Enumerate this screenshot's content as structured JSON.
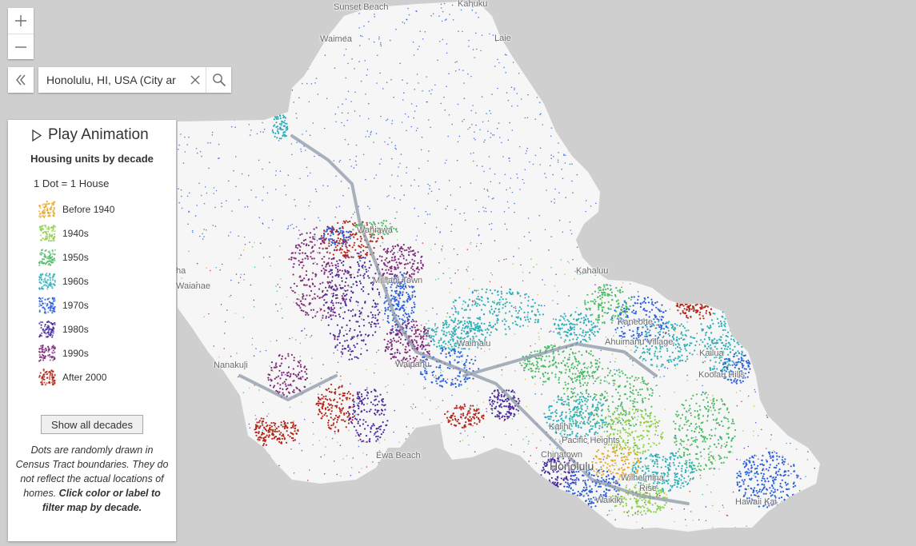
{
  "map": {
    "place_labels": [
      {
        "id": "sunset-beach",
        "text": "Sunset Beach"
      },
      {
        "id": "kahuku",
        "text": "Kahuku"
      },
      {
        "id": "waimea",
        "text": "Waimea"
      },
      {
        "id": "laie",
        "text": "Laie"
      },
      {
        "id": "wahiawa",
        "text": "Wahiawa"
      },
      {
        "id": "mililani-town",
        "text": "Mililani Town"
      },
      {
        "id": "kahaluu",
        "text": "Kahaluu"
      },
      {
        "id": "kaneohe",
        "text": "Kaneohe"
      },
      {
        "id": "ahuimanu-village",
        "text": "Ahuimanu Village"
      },
      {
        "id": "kailua",
        "text": "Kailua"
      },
      {
        "id": "koolau-hills",
        "text": "Koolau Hills"
      },
      {
        "id": "waimalu",
        "text": "Waimalu"
      },
      {
        "id": "waipahu",
        "text": "Waipahu"
      },
      {
        "id": "nanakuli",
        "text": "Nanakuli"
      },
      {
        "id": "waianae",
        "text": "Waianae"
      },
      {
        "id": "makaha",
        "text": "ha"
      },
      {
        "id": "ewa-beach",
        "text": "Ewa Beach"
      },
      {
        "id": "kalihi",
        "text": "Kalihi"
      },
      {
        "id": "pacific-heights",
        "text": "Pacific Heights"
      },
      {
        "id": "chinatown",
        "text": "Chinatown"
      },
      {
        "id": "honolulu",
        "text": "Honolulu"
      },
      {
        "id": "wilhelmina-rise",
        "text": "Wilhelmina"
      },
      {
        "id": "wilhelmina-rise-2",
        "text": "Rise"
      },
      {
        "id": "waikiki",
        "text": "Waikiki"
      },
      {
        "id": "hawaii-kai",
        "text": "Hawaii Kai"
      }
    ]
  },
  "search": {
    "value": "Honolulu, HI, USA (City ar"
  },
  "icons": {
    "zoom_in": "plus-icon",
    "zoom_out": "minus-icon",
    "collapse": "double-chevron-left-icon",
    "clear": "close-icon",
    "search": "search-icon",
    "play": "play-icon"
  },
  "legend": {
    "play_label": "Play Animation",
    "title": "Housing units by decade",
    "dot_ratio": "1 Dot = 1 House",
    "items": [
      {
        "label": "Before 1940",
        "color": "#e8a92b"
      },
      {
        "label": "1940s",
        "color": "#8fd14a"
      },
      {
        "label": "1950s",
        "color": "#4cbb66"
      },
      {
        "label": "1960s",
        "color": "#2fb0b8"
      },
      {
        "label": "1970s",
        "color": "#2b5fd9"
      },
      {
        "label": "1980s",
        "color": "#4a2a9c"
      },
      {
        "label": "1990s",
        "color": "#7f2a78"
      },
      {
        "label": "After 2000",
        "color": "#b3261a"
      }
    ],
    "show_all_label": "Show all decades",
    "note_part1": "Dots are randomly drawn in Census Tract boundaries. They do not reflect the actual locations of homes.",
    "note_part2": "Click color or label to filter map by decade."
  }
}
